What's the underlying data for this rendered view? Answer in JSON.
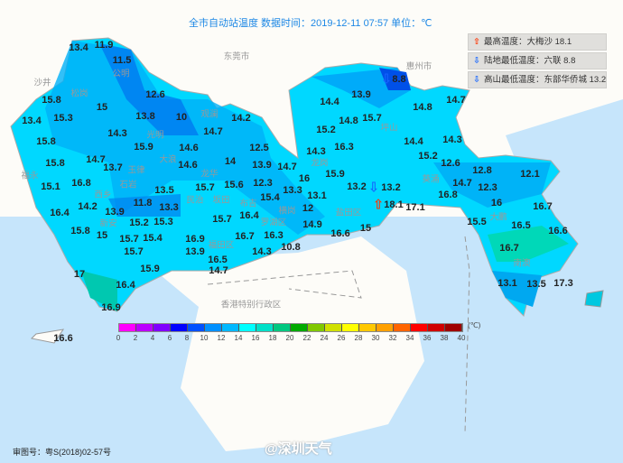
{
  "title": "全市自动站温度  数据时间：2019-12-11 07:57  单位：℃",
  "legend": [
    {
      "icon": "arrow-up-icon",
      "label": "最高温度：大梅沙 18.1",
      "color": "#ff3300"
    },
    {
      "icon": "arrow-down-icon",
      "label": "陆地最低温度：六联 8.8",
      "color": "#1565ff"
    },
    {
      "icon": "arrow-down-icon",
      "label": "高山最低温度：东部华侨城 13.2",
      "color": "#1565ff"
    }
  ],
  "places": [
    "东莞市",
    "惠州市",
    "香港特别行政区",
    "南澳",
    "盐田区",
    "罗湖区",
    "福田区",
    "民治",
    "石岩",
    "光明",
    "公明",
    "松岗",
    "沙井",
    "福永",
    "新安",
    "西乡",
    "玉律",
    "龙华",
    "大浪",
    "观澜",
    "坂田",
    "布吉",
    "横岗",
    "龙岗",
    "坪山",
    "葵涌",
    "大鹏"
  ],
  "stations": [
    "13.4",
    "11.9",
    "11.5",
    "12.6",
    "15.8",
    "15",
    "13.4",
    "15.3",
    "13.8",
    "10",
    "14.2",
    "14.3",
    "14.7",
    "15.8",
    "15.9",
    "14.6",
    "12.5",
    "15.8",
    "14.7",
    "13.7",
    "14.6",
    "14",
    "13.9",
    "14.7",
    "15.1",
    "16.8",
    "13.5",
    "15.7",
    "15.6",
    "12.3",
    "13.3",
    "15.4",
    "14.2",
    "11.8",
    "13.3",
    "13.9",
    "16.4",
    "15.2",
    "15.3",
    "15.7",
    "16.4",
    "16.3",
    "15.8",
    "15",
    "15.7",
    "15.4",
    "16.9",
    "16.7",
    "10.8",
    "15.7",
    "13.9",
    "16.5",
    "14.3",
    "17",
    "15.9",
    "14.7",
    "16.4",
    "16.9",
    "16.6",
    "8.8",
    "13.9",
    "14.4",
    "14.7",
    "14.8",
    "14.8",
    "15.7",
    "15.2",
    "14.4",
    "14.3",
    "16.3",
    "14.3",
    "15.2",
    "12.6",
    "15.9",
    "12.8",
    "12.1",
    "16",
    "13.2",
    "13.2",
    "14.7",
    "12.3",
    "13.1",
    "16.8",
    "16",
    "18.1",
    "17.1",
    "16.7",
    "12",
    "14.9",
    "15.5",
    "16.5",
    "15",
    "16.6",
    "16.6",
    "16.7",
    "13.1",
    "13.5",
    "17.3"
  ],
  "color_scale": {
    "ticks": [
      "0",
      "2",
      "4",
      "6",
      "8",
      "10",
      "12",
      "14",
      "16",
      "18",
      "20",
      "22",
      "24",
      "26",
      "28",
      "30",
      "32",
      "34",
      "36",
      "38",
      "40"
    ],
    "unit": "(℃)",
    "colors": [
      "#ff00ff",
      "#bb00ff",
      "#8000ff",
      "#0000ff",
      "#0050ff",
      "#0090ff",
      "#00b8ff",
      "#00ffff",
      "#00e0c8",
      "#00c880",
      "#00aa00",
      "#80c800",
      "#d0e000",
      "#ffff00",
      "#ffc800",
      "#ffa000",
      "#ff6400",
      "#ff0000",
      "#d00000",
      "#a00000"
    ]
  },
  "footer": "审图号：粤S(2018)02-57号",
  "watermark": "@深圳天气"
}
